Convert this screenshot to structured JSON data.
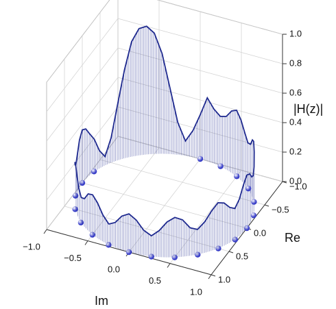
{
  "chart_data": {
    "type": "cylinder3d",
    "x_label": "Im",
    "y_label": "Re",
    "z_label": "|H(z)|",
    "xlim": [
      -1,
      1
    ],
    "xticks": [
      {
        "value": -1,
        "label": "−1.0"
      },
      {
        "value": -0.5,
        "label": "−0.5"
      },
      {
        "value": 0,
        "label": "0.0"
      },
      0.5,
      {
        "value": 1,
        "label": "1.0"
      }
    ],
    "ylim": [
      -1,
      1
    ],
    "yticks": [
      {
        "value": -1,
        "label": "−1.0"
      },
      {
        "value": -0.5,
        "label": "−0.5"
      },
      {
        "value": 0,
        "label": "0.0"
      },
      0.5,
      {
        "value": 1,
        "label": "1.0"
      }
    ],
    "zlim": [
      0,
      1
    ],
    "zticks": [
      {
        "value": 0,
        "label": "0.0"
      },
      0.2,
      0.4,
      0.6,
      0.8,
      {
        "value": 1,
        "label": "1.0"
      }
    ],
    "grid": true,
    "response": {
      "color": "#1f2a8f",
      "theta": [
        0,
        5,
        10,
        15,
        20,
        25,
        30,
        35,
        40,
        45,
        50,
        55,
        60,
        65,
        70,
        75,
        80,
        85,
        90,
        95,
        100,
        105,
        110,
        115,
        120,
        125,
        130,
        135,
        140,
        145,
        150,
        155,
        160,
        165,
        170,
        175,
        180,
        185,
        190,
        195,
        200,
        205,
        210,
        215,
        220,
        225,
        230,
        235,
        240,
        245,
        250,
        255,
        260,
        265,
        270,
        275,
        280,
        285,
        290,
        295,
        300,
        305,
        310,
        315,
        320,
        325,
        330,
        335,
        340,
        345,
        350,
        355
      ],
      "values": [
        0.26,
        0.23,
        0.17,
        0.14,
        0.18,
        0.24,
        0.27,
        0.25,
        0.19,
        0.17,
        0.21,
        0.27,
        0.31,
        0.29,
        0.24,
        0.21,
        0.25,
        0.32,
        0.36,
        0.34,
        0.29,
        0.27,
        0.3,
        0.37,
        0.41,
        0.39,
        0.33,
        0.31,
        0.35,
        0.41,
        0.45,
        0.42,
        0.36,
        0.34,
        0.37,
        0.43,
        0.3,
        0.18,
        0.1,
        0.22,
        0.45,
        0.68,
        0.82,
        0.87,
        0.86,
        0.78,
        0.6,
        0.38,
        0.17,
        0.06,
        0.12,
        0.22,
        0.28,
        0.34,
        0.36,
        0.32,
        0.25,
        0.21,
        0.24,
        0.29,
        0.31,
        0.27,
        0.21,
        0.17,
        0.19,
        0.25,
        0.27,
        0.24,
        0.18,
        0.14,
        0.17,
        0.23
      ]
    },
    "zeros": {
      "color": "#3a40c8",
      "re": [
        1,
        0.97,
        0.87,
        0.71,
        0.5,
        0.26,
        0,
        -0.26,
        -0.5,
        -0.71,
        -0.87,
        -0.97,
        -1,
        -0.26,
        0,
        0.26,
        0.5,
        0.71,
        0.87,
        0.97
      ],
      "im": [
        0,
        0.26,
        0.5,
        0.71,
        0.87,
        0.97,
        1,
        0.97,
        0.87,
        0.71,
        0.5,
        0.26,
        0,
        -0.97,
        -1,
        -0.97,
        -0.87,
        -0.71,
        -0.5,
        -0.26
      ]
    }
  }
}
